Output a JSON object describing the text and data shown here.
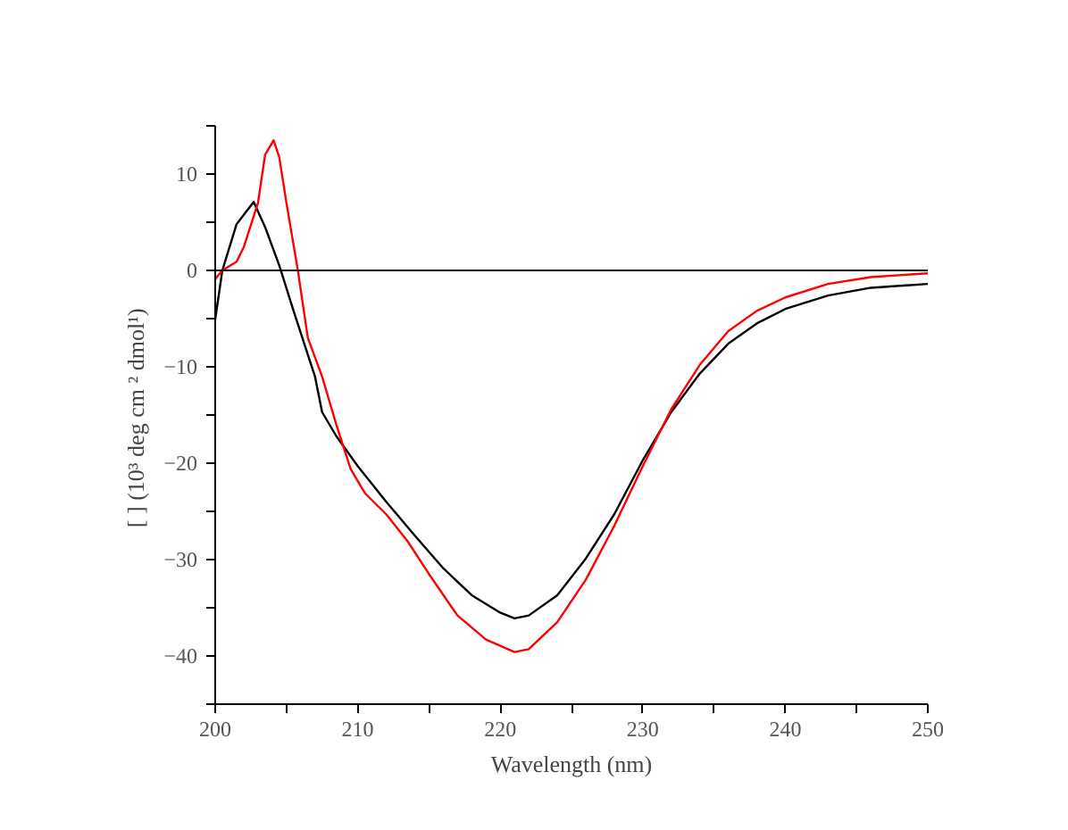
{
  "chart_data": {
    "type": "line",
    "xlabel": "Wavelength (nm)",
    "ylabel": "[  ] (10³ deg cm ² dmol¹)",
    "xlim": [
      200,
      250
    ],
    "ylim": [
      -45,
      15
    ],
    "xticks": [
      200,
      {
        "value": 205,
        "label": null
      },
      210,
      {
        "value": 215,
        "label": null
      },
      220,
      {
        "value": 225,
        "label": null
      },
      230,
      {
        "value": 235,
        "label": null
      },
      240,
      {
        "value": 245,
        "label": null
      },
      250
    ],
    "yticks": [
      {
        "value": 15,
        "label": null
      },
      10,
      {
        "value": 5,
        "label": null
      },
      0,
      {
        "value": -5,
        "label": null
      },
      -10,
      {
        "value": -15,
        "label": null
      },
      -20,
      {
        "value": -25,
        "label": null
      },
      -30,
      {
        "value": -35,
        "label": null
      },
      -40,
      {
        "value": -45,
        "label": null
      }
    ],
    "grid": false,
    "line_style": "solid",
    "marker": "none",
    "ref_lines": [
      {
        "axis": "y",
        "value": 0,
        "color": "#000000"
      }
    ],
    "series": [
      {
        "color": "#000000",
        "x": [
          200,
          200.5,
          201.5,
          202.7,
          203.5,
          204.5,
          205.5,
          207,
          207.5,
          208.5,
          210,
          212,
          214,
          216,
          218,
          220,
          221,
          222,
          224,
          226,
          228,
          230,
          232,
          234,
          236,
          238,
          240,
          243,
          246,
          250
        ],
        "values": [
          -5.1,
          0,
          4.8,
          7.1,
          4.5,
          0.5,
          -4.2,
          -11,
          -14.7,
          -17.2,
          -20.3,
          -24,
          -27.5,
          -30.9,
          -33.7,
          -35.5,
          -36.1,
          -35.8,
          -33.7,
          -29.9,
          -25.3,
          -19.7,
          -14.7,
          -10.7,
          -7.6,
          -5.5,
          -4.0,
          -2.6,
          -1.8,
          -1.4
        ]
      },
      {
        "color": "#ff0000",
        "x": [
          200,
          200.5,
          201.5,
          202,
          203,
          203.5,
          204.1,
          204.5,
          205,
          205.8,
          206.5,
          207.5,
          208.5,
          209.5,
          210.5,
          212,
          213.5,
          215,
          217,
          219,
          221,
          222,
          224,
          226,
          228,
          230,
          232,
          234,
          236,
          238,
          240,
          243,
          246,
          250
        ],
        "values": [
          -0.9,
          0,
          0.9,
          2.4,
          7.0,
          12.0,
          13.5,
          11.7,
          7.0,
          0,
          -7,
          -11,
          -16,
          -20.6,
          -23.1,
          -25.3,
          -28.1,
          -31.5,
          -35.8,
          -38.3,
          -39.6,
          -39.3,
          -36.5,
          -32.1,
          -26.5,
          -20.3,
          -14.4,
          -9.8,
          -6.3,
          -4.2,
          -2.8,
          -1.4,
          -0.7,
          -0.3
        ]
      }
    ]
  }
}
